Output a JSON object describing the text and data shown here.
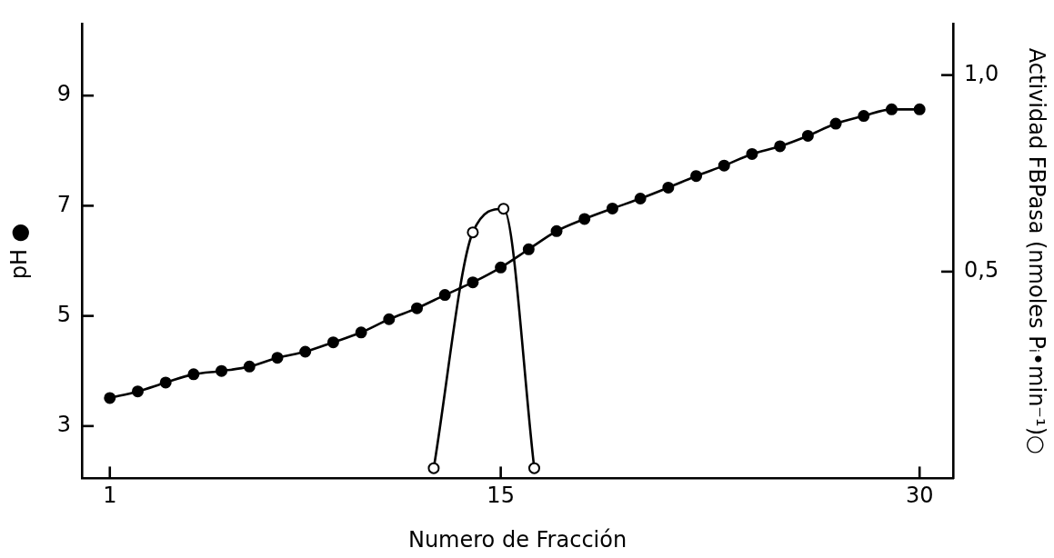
{
  "chart_data": {
    "type": "line",
    "xlabel": "Numero de Fracción",
    "ylabel": "pH ●",
    "y2label": "Actividad FBPasa (nmoles Pᵢ•min⁻¹)○",
    "xlim": [
      0,
      31.2
    ],
    "xticks": [
      1,
      15,
      30
    ],
    "ylim": [
      2.05,
      10.3
    ],
    "yticks": [
      3,
      5,
      7,
      9
    ],
    "y2lim": [
      -0.026,
      1.13
    ],
    "y2ticks": [
      {
        "value": 0.5,
        "label": "0,5"
      },
      {
        "value": 1,
        "label": "1,0"
      }
    ],
    "grid": false,
    "legend": false,
    "marker": "circle",
    "line_style": "solid",
    "x": [
      1,
      2,
      3,
      4,
      5,
      6,
      7,
      8,
      9,
      10,
      11,
      12,
      13,
      14,
      15,
      16,
      17,
      18,
      19,
      20,
      21,
      22,
      23,
      24,
      25,
      26,
      27,
      28,
      29,
      30
    ],
    "series": [
      {
        "color": "#000000",
        "values": [
          3.51,
          3.63,
          3.79,
          3.94,
          4.0,
          4.08,
          4.24,
          4.35,
          4.52,
          4.7,
          4.94,
          5.14,
          5.38,
          5.61,
          5.88,
          6.21,
          6.54,
          6.76,
          6.95,
          7.13,
          7.33,
          7.54,
          7.73,
          7.94,
          8.08,
          8.27,
          8.49,
          8.63,
          8.75,
          8.75
        ]
      },
      {
        "color": "#000000",
        "axis": "y2",
        "x": [
          12.6,
          14,
          15.1,
          16.2
        ],
        "values": [
          0,
          0.6,
          0.66,
          0
        ]
      }
    ]
  }
}
